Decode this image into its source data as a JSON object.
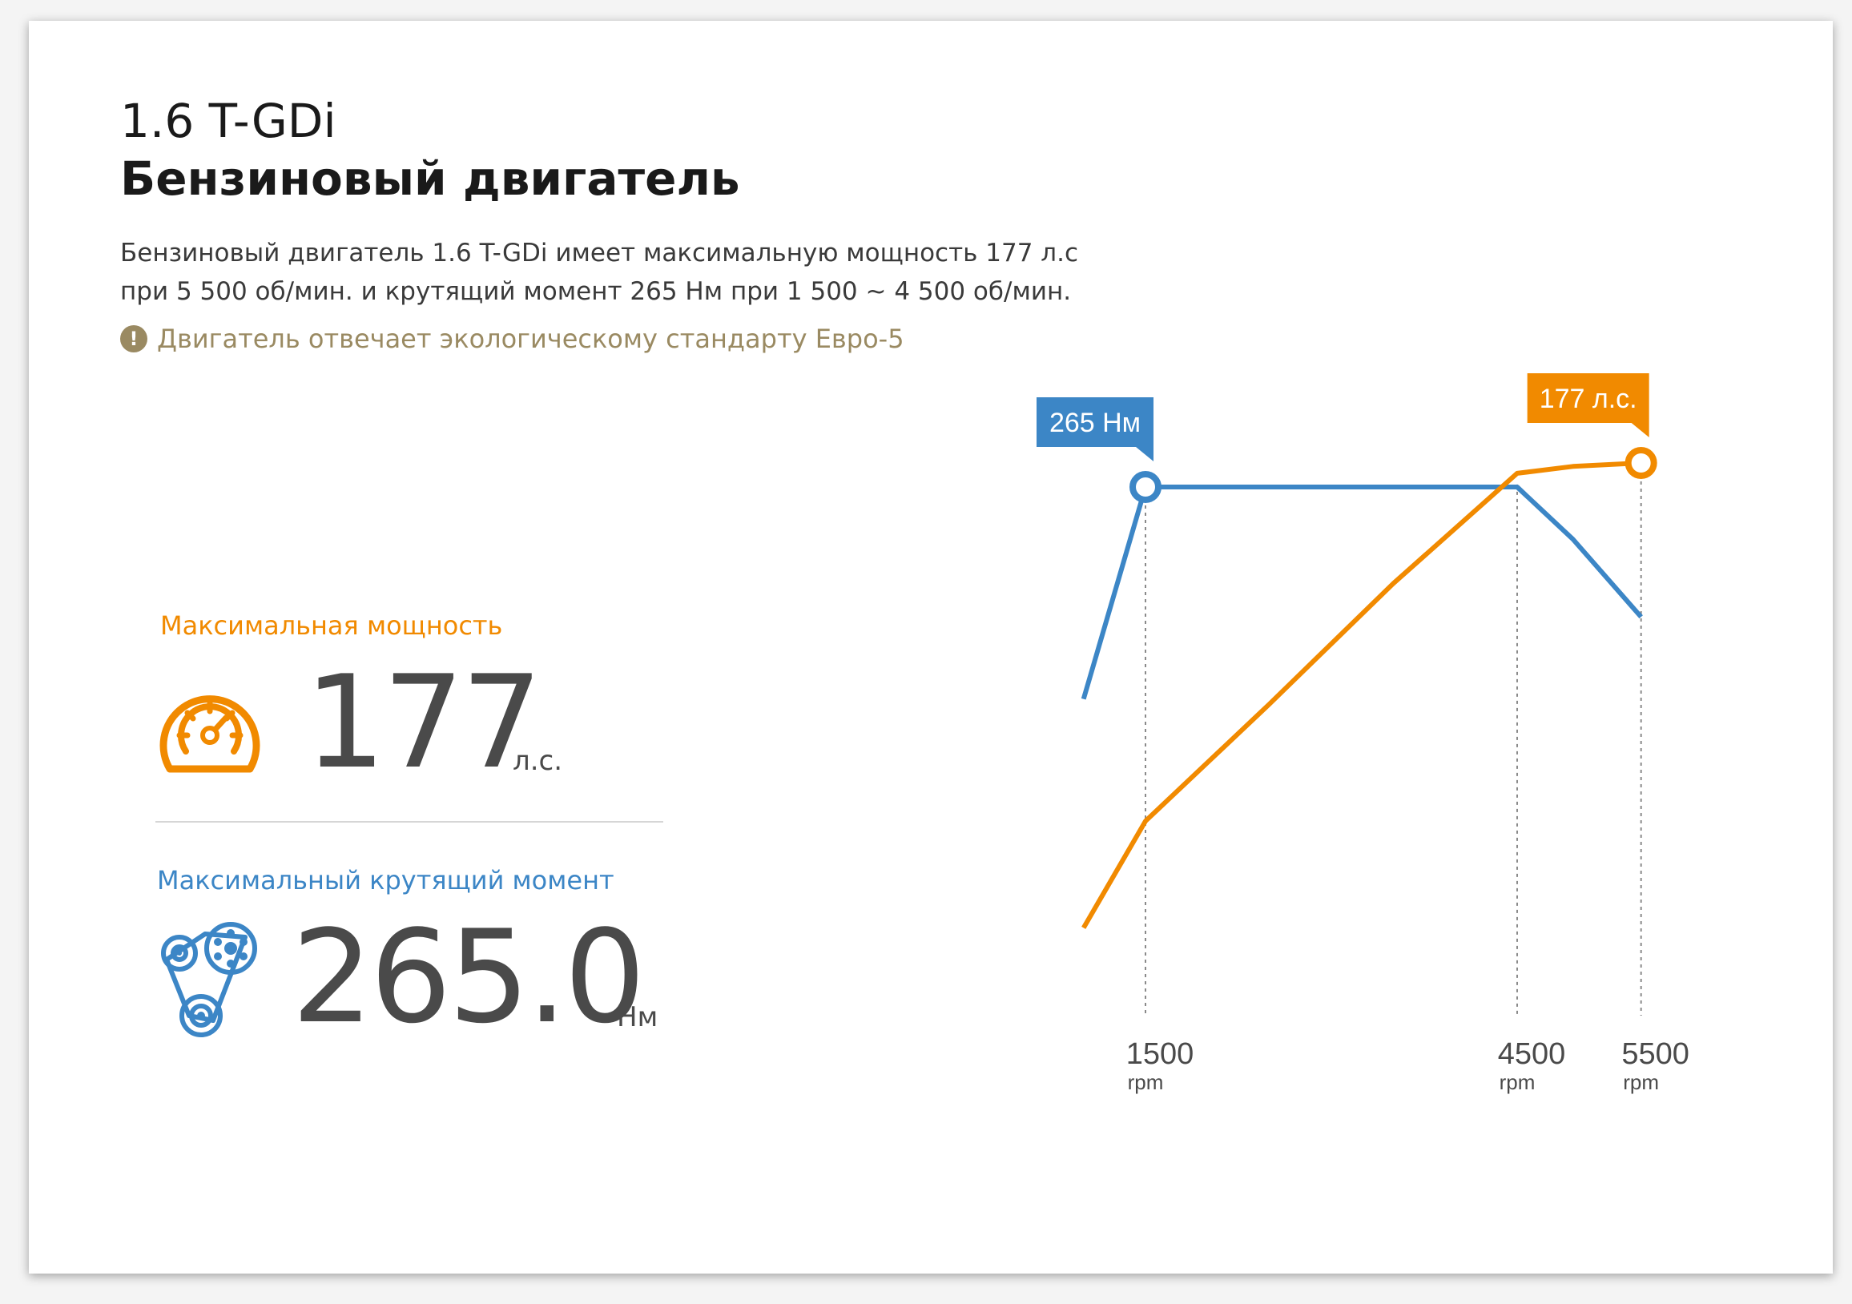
{
  "header": {
    "title_line1": "1.6 T-GDi",
    "title_line2": "Бензиновый двигатель"
  },
  "description": {
    "line1": "Бензиновый двигатель 1.6 T-GDi имеет максимальную мощность 177 л.с",
    "line2": "при 5 500 об/мин. и крутящий момент 265 Нм при 1 500 ~ 4 500 об/мин."
  },
  "note": {
    "icon_glyph": "!",
    "text": "Двигатель отвечает экологическому стандарту Евро-5"
  },
  "power": {
    "label": "Максимальная мощность",
    "value": "177",
    "unit": "л.с.",
    "icon": "speedometer-icon",
    "color": "#f18a00"
  },
  "torque": {
    "label": "Максимальный крутящий момент",
    "value": "265.0",
    "unit": "Нм",
    "icon": "belt-pulley-icon",
    "color": "#3c86c6"
  },
  "chart_data": {
    "type": "line",
    "x_ticks": [
      {
        "value": 1500,
        "label": "1500",
        "unit": "rpm"
      },
      {
        "value": 4500,
        "label": "4500",
        "unit": "rpm"
      },
      {
        "value": 5500,
        "label": "5500",
        "unit": "rpm"
      }
    ],
    "series": [
      {
        "key": "torque",
        "color": "#3c86c6",
        "x": [
          1000,
          1500,
          2500,
          3500,
          4500,
          4950,
          5500
        ],
        "y": [
          123,
          265,
          265,
          265,
          265,
          230,
          178
        ],
        "peak": {
          "x": 1500,
          "y": 265,
          "label": "265 Нм"
        }
      },
      {
        "key": "power",
        "color": "#f18a00",
        "x": [
          1000,
          1500,
          2500,
          3500,
          4500,
          4950,
          5500
        ],
        "y": [
          42,
          73,
          107,
          142,
          174,
          176,
          177
        ],
        "peak": {
          "x": 5500,
          "y": 177,
          "label": "177 л.с."
        }
      }
    ]
  }
}
